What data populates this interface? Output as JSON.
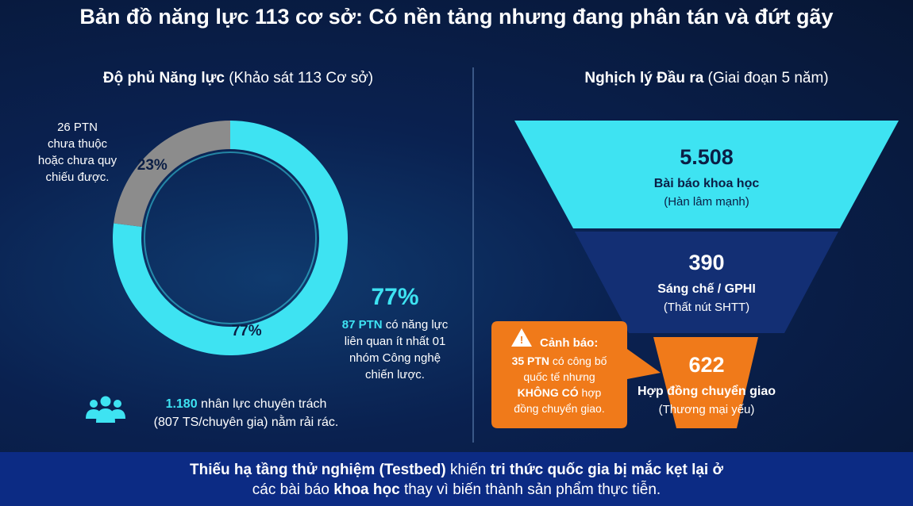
{
  "title": "Bản đồ năng lực 113 cơ sở: Có nền tảng nhưng đang phân tán và đứt gãy",
  "left_panel": {
    "heading": [
      [
        {
          "text": "Độ phủ Năng lực",
          "style": "bold"
        },
        {
          "text": " (Khảo sát 113 Cơ sở)",
          "style": "normal"
        }
      ]
    ],
    "donut": {
      "values": [
        77,
        23
      ],
      "value_labels": [
        "77%",
        "23%"
      ],
      "colors": [
        "#3ee3f2",
        "#8c8c8c"
      ]
    },
    "gray_note": [
      "26 PTN",
      "chưa thuộc",
      "hoặc chưa quy",
      "chiếu được."
    ],
    "cyan_note": [
      [
        {
          "text": "87 PTN",
          "style": "cyan-bold"
        },
        {
          "text": " có năng lực",
          "style": "normal"
        }
      ],
      [
        {
          "text": "liên quan ít nhất 01",
          "style": "normal"
        }
      ],
      [
        {
          "text": "nhóm Công nghệ",
          "style": "normal"
        }
      ],
      [
        {
          "text": "chiến lược.",
          "style": "normal"
        }
      ]
    ],
    "staff": [
      [
        {
          "text": "1.180",
          "style": "cyan-bold"
        },
        {
          "text": " nhân lực chuyên trách",
          "style": "normal"
        }
      ],
      [
        {
          "text": "(807 TS/chuyên gia) nằm rải rác.",
          "style": "normal"
        }
      ]
    ]
  },
  "right_panel": {
    "heading": [
      [
        {
          "text": "Nghịch lý Đầu ra",
          "style": "bold"
        },
        {
          "text": " (Giai đoạn 5 năm)",
          "style": "normal"
        }
      ]
    ],
    "stages": [
      {
        "value": "5.508",
        "label": "Bài báo khoa học",
        "note": "(Hàn lâm mạnh)"
      },
      {
        "value": "390",
        "label": "Sáng chế / GPHI",
        "note": "(Thất nút SHTT)"
      },
      {
        "value": "622",
        "label": "Hợp đồng chuyển giao",
        "note": "(Thương mại yếu)"
      }
    ],
    "warning": {
      "title": "Cảnh báo:",
      "lines": [
        [
          {
            "text": "35 PTN",
            "style": "bold"
          },
          {
            "text": " có công bố",
            "style": "normal"
          }
        ],
        [
          {
            "text": "quốc tế nhưng",
            "style": "normal"
          }
        ],
        [
          {
            "text": "KHÔNG CÓ",
            "style": "bold"
          },
          {
            "text": " hợp",
            "style": "normal"
          }
        ],
        [
          {
            "text": "đồng chuyển giao.",
            "style": "normal"
          }
        ]
      ]
    }
  },
  "banner": [
    [
      {
        "text": "Thiếu hạ tầng thử nghiệm (Testbed)",
        "style": "bold"
      },
      {
        "text": " khiến ",
        "style": "normal"
      },
      {
        "text": "tri thức quốc gia bị mắc kẹt lại ở",
        "style": "bold"
      }
    ],
    [
      {
        "text": "các bài báo ",
        "style": "normal"
      },
      {
        "text": "khoa học",
        "style": "bold"
      },
      {
        "text": " thay vì biến thành sản phẩm thực tiễn.",
        "style": "normal"
      }
    ]
  ]
}
